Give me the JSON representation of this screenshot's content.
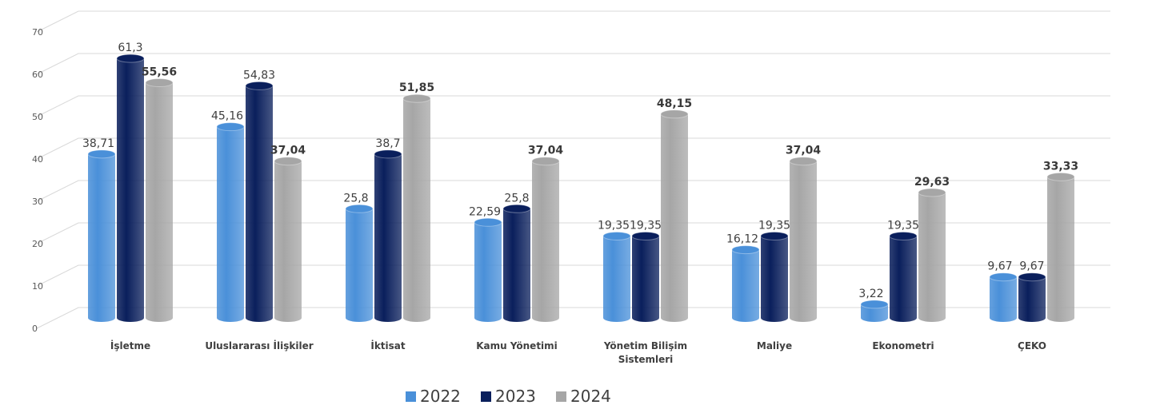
{
  "chart_data": {
    "type": "bar",
    "categories": [
      [
        "İşletme"
      ],
      [
        "Uluslararası İlişkiler"
      ],
      [
        "İktisat"
      ],
      [
        "Kamu Yönetimi"
      ],
      [
        "Yönetim Bilişim",
        "Sistemleri"
      ],
      [
        "Maliye"
      ],
      [
        "Ekonometri"
      ],
      [
        "ÇEKO"
      ]
    ],
    "series": [
      {
        "name": "2022",
        "color": "#4a90d9",
        "values": [
          38.71,
          45.16,
          25.8,
          22.59,
          19.35,
          16.12,
          3.22,
          9.67
        ],
        "labels": [
          "38,71",
          "45,16",
          "25,8",
          "22,59",
          "19,35",
          "16,12",
          "3,22",
          "9,67"
        ]
      },
      {
        "name": "2023",
        "color": "#0a1f5c",
        "values": [
          61.3,
          54.83,
          38.7,
          25.8,
          19.35,
          19.35,
          19.35,
          9.67
        ],
        "labels": [
          "61,3",
          "54,83",
          "38,7",
          "25,8",
          "19,35",
          "19,35",
          "19,35",
          "9,67"
        ]
      },
      {
        "name": "2024",
        "color": "#a6a6a6",
        "values": [
          55.56,
          37.04,
          51.85,
          37.04,
          48.15,
          37.04,
          29.63,
          33.33
        ],
        "labels": [
          "55,56",
          "37,04",
          "51,85",
          "37,04",
          "48,15",
          "37,04",
          "29,63",
          "33,33"
        ]
      }
    ],
    "y_ticks": [
      0,
      10,
      20,
      30,
      40,
      50,
      60,
      70
    ],
    "ylim": [
      0,
      70
    ],
    "grid": true,
    "legend_position": "bottom",
    "style": "3d-cylinder"
  }
}
